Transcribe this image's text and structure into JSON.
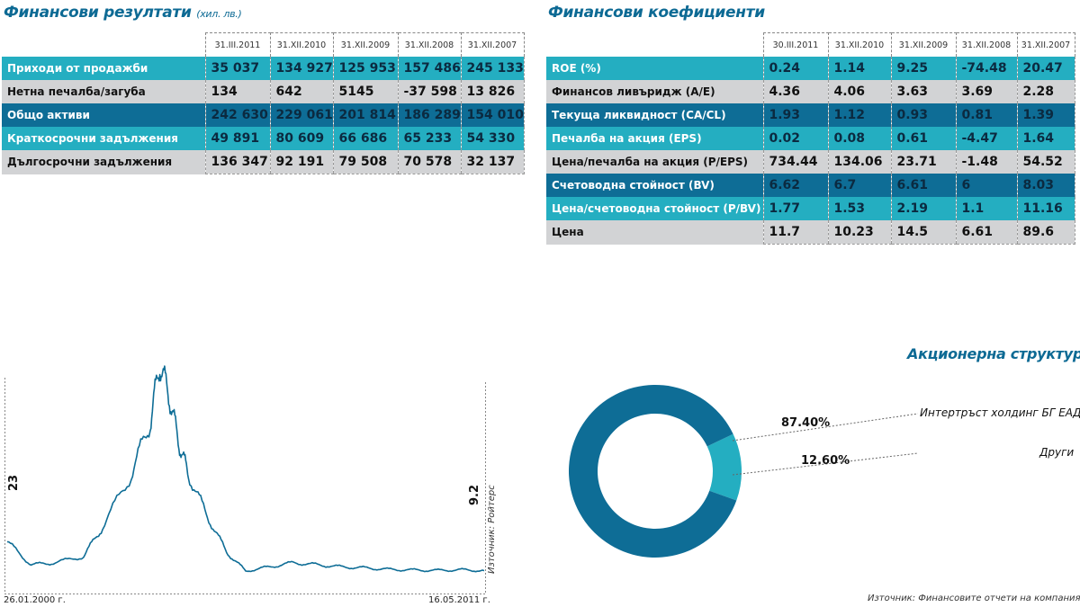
{
  "fin_results": {
    "title": "Финансови резултати",
    "unit": "(хил. лв.)",
    "columns": [
      "31.III.2011",
      "31.XII.2010",
      "31.XII.2009",
      "31.XII.2008",
      "31.XII.2007"
    ],
    "rows": [
      {
        "label": "Приходи от продажби",
        "values": [
          "35 037",
          "134 927",
          "125 953",
          "157 486",
          "245 133"
        ]
      },
      {
        "label": "Нетна печалба/загуба",
        "values": [
          "134",
          "642",
          "5145",
          "-37 598",
          "13 826"
        ]
      },
      {
        "label": "Общо активи",
        "values": [
          "242 630",
          "229 061",
          "201 814",
          "186 289",
          "154 010"
        ]
      },
      {
        "label": "Краткосрочни задължения",
        "values": [
          "49 891",
          "80 609",
          "66 686",
          "65 233",
          "54 330"
        ]
      },
      {
        "label": "Дългосрочни задължения",
        "values": [
          "136 347",
          "92 191",
          "79 508",
          "70 578",
          "32 137"
        ]
      }
    ]
  },
  "fin_ratios": {
    "title": "Финансови коефициенти",
    "columns": [
      "30.III.2011",
      "31.XII.2010",
      "31.XII.2009",
      "31.XII.2008",
      "31.XII.2007"
    ],
    "rows": [
      {
        "label": "ROE (%)",
        "values": [
          "0.24",
          "1.14",
          "9.25",
          "-74.48",
          "20.47"
        ]
      },
      {
        "label": "Финансов ливъридж (A/E)",
        "values": [
          "4.36",
          "4.06",
          "3.63",
          "3.69",
          "2.28"
        ]
      },
      {
        "label": "Текуща ликвидност (CA/CL)",
        "values": [
          "1.93",
          "1.12",
          "0.93",
          "0.81",
          "1.39"
        ]
      },
      {
        "label": "Печалба на акция (EPS)",
        "values": [
          "0.02",
          "0.08",
          "0.61",
          "-4.47",
          "1.64"
        ]
      },
      {
        "label": "Цена/печалба на акция (P/EPS)",
        "values": [
          "734.44",
          "134.06",
          "23.71",
          "-1.48",
          "54.52"
        ]
      },
      {
        "label": "Счетоводна стойност (BV)",
        "values": [
          "6.62",
          "6.7",
          "6.61",
          "6",
          "8.03"
        ]
      },
      {
        "label": "Цена/счетоводна стойност (P/BV)",
        "values": [
          "1.77",
          "1.53",
          "2.19",
          "1.1",
          "11.16"
        ]
      },
      {
        "label": "Цена",
        "values": [
          "11.7",
          "10.23",
          "14.5",
          "6.61",
          "89.6"
        ]
      }
    ]
  },
  "chart_data": [
    {
      "type": "line",
      "title": "",
      "x_start_label": "26.01.2000 г.",
      "x_end_label": "16.05.2011 г.",
      "start_value_label": "23",
      "end_value_label": "9.2",
      "source": "Източник: Ройтерс",
      "x": [
        0,
        0.05,
        0.1,
        0.16,
        0.2,
        0.26,
        0.3,
        0.32,
        0.34,
        0.36,
        0.38,
        0.42,
        0.46,
        0.5,
        0.55,
        0.6,
        0.65,
        0.7,
        0.75,
        0.8,
        0.85,
        0.9,
        0.95,
        1.0
      ],
      "values": [
        23,
        12,
        13,
        16,
        30,
        55,
        80,
        108,
        92,
        70,
        55,
        35,
        18,
        9,
        11,
        13,
        12,
        11,
        10.5,
        9.8,
        9.5,
        9.3,
        9.6,
        9.2
      ],
      "ylim": [
        0,
        115
      ],
      "grid": false
    },
    {
      "type": "pie",
      "style": "donut",
      "title": "Акционерна структура",
      "labels": [
        "Интертръст холдинг БГ ЕАД",
        "Други"
      ],
      "values": [
        87.4,
        12.6
      ],
      "value_labels": [
        "87.40%",
        "12.60%"
      ],
      "colors": [
        "#0e6d96",
        "#24aec1"
      ],
      "source": "Източник: Финансовите отчети на компанията"
    }
  ]
}
